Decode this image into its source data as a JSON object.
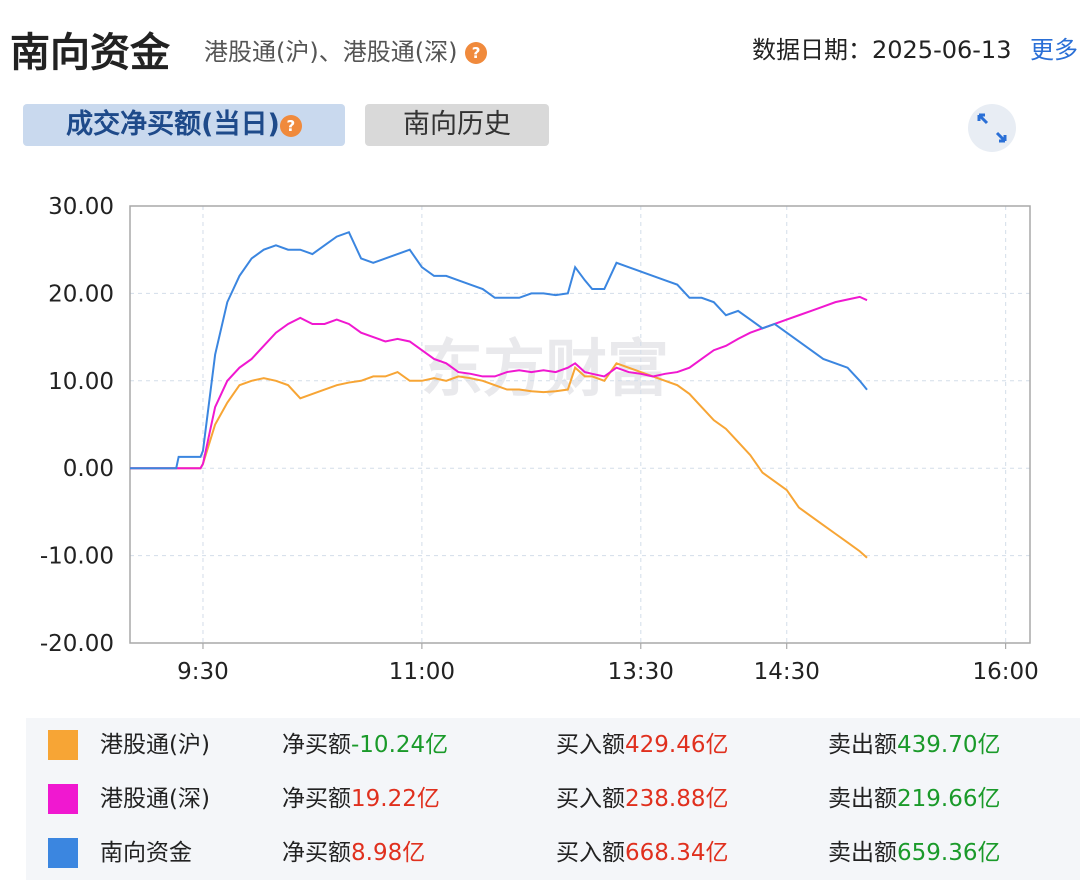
{
  "header": {
    "title": "南向资金",
    "subtitle": "港股通(沪)、港股通(深)",
    "date": "数据日期：2025-06-13",
    "more": "更多"
  },
  "tabs": [
    "成交净买额(当日)",
    "南向历史"
  ],
  "chart_data": {
    "type": "line",
    "watermark": "东方财富",
    "x": [
      0,
      19,
      20,
      29,
      30,
      35,
      40,
      45,
      50,
      55,
      60,
      65,
      70,
      75,
      80,
      85,
      90,
      95,
      100,
      105,
      110,
      115,
      120,
      125,
      130,
      135,
      140,
      145,
      150,
      155,
      160,
      165,
      170,
      175,
      180,
      183,
      187,
      190,
      195,
      200,
      205,
      210,
      215,
      220,
      225,
      230,
      235,
      240,
      245,
      250,
      255,
      260,
      265,
      270,
      275,
      280,
      285,
      290,
      295,
      300,
      303
    ],
    "series": [
      {
        "name": "港股通(沪)",
        "color": "#f7a535",
        "values": [
          0,
          0,
          0,
          0,
          0.5,
          5,
          7.5,
          9.5,
          10,
          10.3,
          10,
          9.5,
          8,
          8.5,
          9,
          9.5,
          9.8,
          10,
          10.5,
          10.5,
          11,
          10,
          10,
          10.3,
          10,
          10.5,
          10.3,
          10,
          9.5,
          9,
          9,
          8.8,
          8.7,
          8.8,
          9,
          11.5,
          10.5,
          10.5,
          10,
          12,
          11.5,
          11,
          10.5,
          10,
          9.5,
          8.5,
          7,
          5.5,
          4.5,
          3,
          1.5,
          -0.5,
          -1.5,
          -2.5,
          -4.5,
          -5.5,
          -6.5,
          -7.5,
          -8.5,
          -9.5,
          -10.24
        ]
      },
      {
        "name": "港股通(深)",
        "color": "#f018d0",
        "values": [
          0,
          0,
          0,
          0,
          0.5,
          7,
          10,
          11.5,
          12.5,
          14,
          15.5,
          16.5,
          17.2,
          16.5,
          16.5,
          17,
          16.5,
          15.5,
          15,
          14.5,
          14.8,
          14.5,
          13.5,
          12.5,
          12,
          11,
          10.8,
          10.5,
          10.5,
          11,
          11.2,
          11,
          11.2,
          11,
          11.5,
          12,
          11,
          10.8,
          10.5,
          11.5,
          11,
          10.8,
          10.5,
          10.8,
          11,
          11.5,
          12.5,
          13.5,
          14,
          14.8,
          15.5,
          16,
          16.5,
          17,
          17.5,
          18,
          18.5,
          19,
          19.3,
          19.6,
          19.22
        ]
      },
      {
        "name": "南向资金",
        "color": "#3b86e0",
        "values": [
          0,
          0,
          1.3,
          1.3,
          2,
          13,
          19,
          22,
          24,
          25,
          25.5,
          25,
          25,
          24.5,
          25.5,
          26.5,
          27,
          24,
          23.5,
          24,
          24.5,
          25,
          23,
          22,
          22,
          21.5,
          21,
          20.5,
          19.5,
          19.5,
          19.5,
          20,
          20,
          19.8,
          20,
          23,
          21.5,
          20.5,
          20.5,
          23.5,
          23,
          22.5,
          22,
          21.5,
          21,
          19.5,
          19.5,
          19,
          17.5,
          18,
          17,
          16,
          16.5,
          15.5,
          14.5,
          13.5,
          12.5,
          12,
          11.5,
          10,
          8.98
        ]
      }
    ],
    "xlim": [
      0,
      370
    ],
    "xticks": [
      {
        "value": 30,
        "label": "9:30"
      },
      {
        "value": 120,
        "label": "11:00"
      },
      {
        "value": 210,
        "label": "13:30"
      },
      {
        "value": 270,
        "label": "14:30"
      },
      {
        "value": 360,
        "label": "16:00"
      }
    ],
    "ylim": [
      -20,
      30
    ],
    "yticks": [
      {
        "value": -20,
        "label": "-20.00"
      },
      {
        "value": -10,
        "label": "-10.00"
      },
      {
        "value": 0,
        "label": "0.00"
      },
      {
        "value": 10,
        "label": "10.00"
      },
      {
        "value": 20,
        "label": "20.00"
      },
      {
        "value": 30,
        "label": "30.00"
      }
    ],
    "grid": true
  },
  "legend_table": [
    {
      "net_label": "净买额",
      "net": "-10.24亿",
      "buy_label": "买入额",
      "buy": "429.46亿",
      "sell_label": "卖出额",
      "sell": "439.70亿"
    },
    {
      "net_label": "净买额",
      "net": "19.22亿",
      "buy_label": "买入额",
      "buy": "238.88亿",
      "sell_label": "卖出额",
      "sell": "219.66亿"
    },
    {
      "net_label": "净买额",
      "net": "8.98亿",
      "buy_label": "买入额",
      "buy": "668.34亿",
      "sell_label": "卖出额",
      "sell": "659.36亿"
    }
  ]
}
